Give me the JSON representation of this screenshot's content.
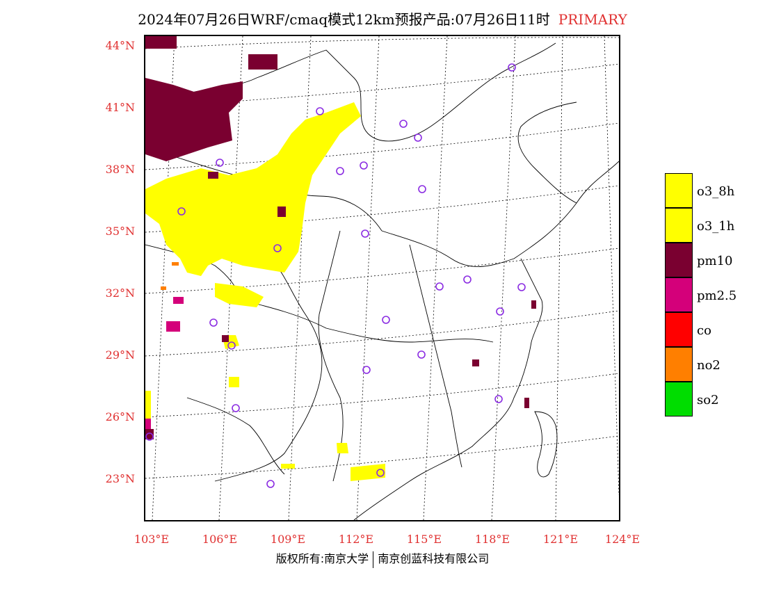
{
  "title": {
    "main": "2024年07月26日WRF/cmaq模式12km预报产品:07月26日11时",
    "tag": "PRIMARY",
    "tag_color": "#e03030"
  },
  "axes": {
    "lat_labels": [
      "44°N",
      "41°N",
      "38°N",
      "35°N",
      "32°N",
      "29°N",
      "26°N",
      "23°N"
    ],
    "lon_labels": [
      "103°E",
      "106°E",
      "109°E",
      "112°E",
      "115°E",
      "118°E",
      "121°E",
      "124°E"
    ],
    "label_color": "#e03030"
  },
  "footer": {
    "left": "版权所有:南京大学",
    "right": "南京创蓝科技有限公司"
  },
  "legend": [
    {
      "label": "o3_8h",
      "color": "#ffff00"
    },
    {
      "label": "o3_1h",
      "color": "#ffff00"
    },
    {
      "label": "pm10",
      "color": "#7a0030"
    },
    {
      "label": "pm2.5",
      "color": "#d4007a"
    },
    {
      "label": "co",
      "color": "#ff0000"
    },
    {
      "label": "no2",
      "color": "#ff7f00"
    },
    {
      "label": "so2",
      "color": "#00dd00"
    }
  ],
  "map": {
    "region": "China east/central",
    "stations_marker": "purple-circle-icon",
    "marker_color": "#8a2be2"
  }
}
